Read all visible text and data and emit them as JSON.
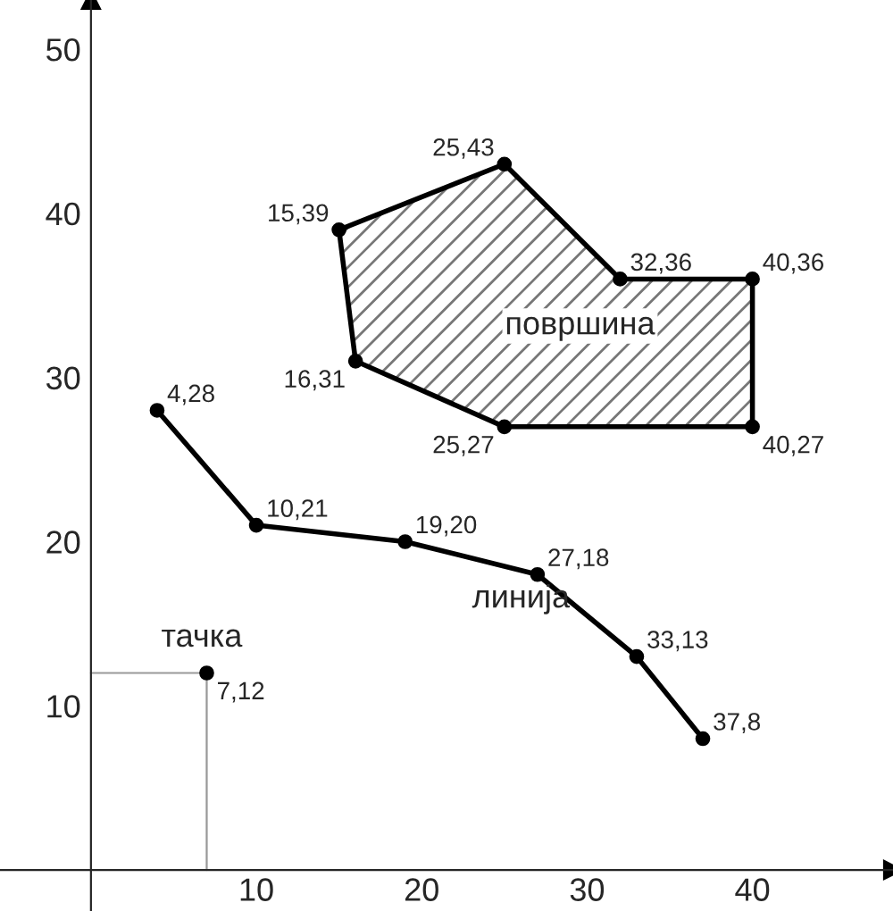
{
  "chart_data": {
    "type": "scatter",
    "xlim": [
      -5.5,
      48.5
    ],
    "ylim": [
      -2.5,
      53
    ],
    "xticks": [
      10,
      20,
      30,
      40
    ],
    "yticks": [
      10,
      20,
      30,
      40,
      50
    ],
    "grid": false,
    "marker": "circle",
    "series": [
      {
        "type": "line",
        "color": "#999999",
        "x": [
          0,
          7,
          7
        ],
        "values": [
          12,
          12,
          0
        ],
        "marker": "none"
      },
      {
        "type": "area",
        "name": "површина",
        "color": "#000000",
        "x": [
          15,
          25,
          32,
          40,
          40,
          25,
          16
        ],
        "values": [
          39,
          43,
          36,
          36,
          27,
          27,
          31
        ]
      },
      {
        "type": "line",
        "name": "линија",
        "color": "#000000",
        "x": [
          4,
          10,
          19,
          27,
          33,
          37
        ],
        "values": [
          28,
          21,
          20,
          18,
          13,
          8
        ]
      },
      {
        "name": "тачка",
        "color": "#000000",
        "x": [
          7
        ],
        "values": [
          12
        ]
      }
    ],
    "annotations": [
      {
        "text": "15,39",
        "x": 15,
        "y": 39
      },
      {
        "text": "25,43",
        "x": 25,
        "y": 43
      },
      {
        "text": "32,36",
        "x": 32,
        "y": 36
      },
      {
        "text": "40,36",
        "x": 40,
        "y": 36
      },
      {
        "text": "40,27",
        "x": 40,
        "y": 27
      },
      {
        "text": "25,27",
        "x": 25,
        "y": 27
      },
      {
        "text": "16,31",
        "x": 16,
        "y": 31
      },
      {
        "text": "4,28",
        "x": 4,
        "y": 28
      },
      {
        "text": "10,21",
        "x": 10,
        "y": 21
      },
      {
        "text": "19,20",
        "x": 19,
        "y": 20
      },
      {
        "text": "27,18",
        "x": 27,
        "y": 18
      },
      {
        "text": "33,13",
        "x": 33,
        "y": 13
      },
      {
        "text": "37,8",
        "x": 37,
        "y": 8
      },
      {
        "text": "7,12",
        "x": 7,
        "y": 12
      }
    ]
  }
}
